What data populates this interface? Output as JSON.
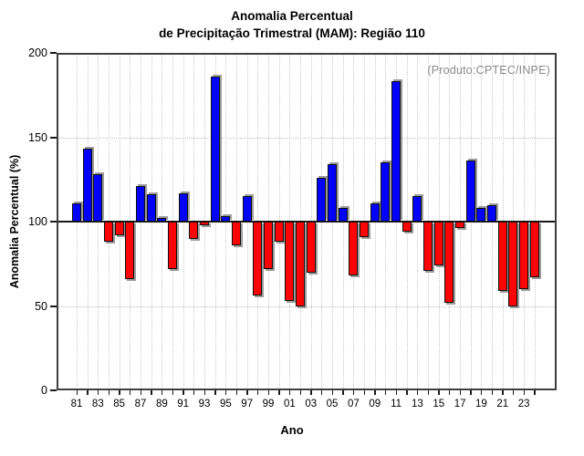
{
  "title": {
    "line1": "Anomalia Percentual",
    "line2": "de Precipitação Trimestral (MAM): Região 110"
  },
  "annotation": "(Produto:CPTEC/INPE)",
  "chart_data": {
    "type": "bar",
    "title": "Anomalia Percentual de Precipitação Trimestral (MAM): Região 110",
    "xlabel": "Ano",
    "ylabel": "Anomalia Percentual (%)",
    "ylim": [
      0,
      200
    ],
    "yticks": [
      0,
      50,
      100,
      150,
      200
    ],
    "hgridlines": [
      50,
      150
    ],
    "baseline": 100,
    "grid": "dotted",
    "legend": "none",
    "categories": [
      "1981",
      "1982",
      "1983",
      "1984",
      "1985",
      "1986",
      "1987",
      "1988",
      "1989",
      "1990",
      "1991",
      "1992",
      "1993",
      "1994",
      "1995",
      "1996",
      "1997",
      "1998",
      "1999",
      "2000",
      "2001",
      "2002",
      "2003",
      "2004",
      "2005",
      "2006",
      "2007",
      "2008",
      "2009",
      "2010",
      "2011",
      "2012",
      "2013",
      "2014",
      "2015",
      "2016",
      "2017",
      "2018",
      "2019",
      "2020",
      "2021",
      "2022",
      "2023",
      "2024"
    ],
    "x_tick_labels": [
      "81",
      "83",
      "85",
      "87",
      "89",
      "91",
      "93",
      "95",
      "97",
      "99",
      "01",
      "03",
      "05",
      "07",
      "09",
      "11",
      "13",
      "15",
      "17",
      "19",
      "21",
      "23"
    ],
    "values": [
      111,
      143,
      128,
      88,
      92,
      66,
      121,
      116,
      102,
      72,
      117,
      90,
      98,
      186,
      103,
      86,
      115,
      56,
      72,
      88,
      53,
      50,
      70,
      126,
      134,
      108,
      68,
      91,
      111,
      135,
      183,
      94,
      115,
      71,
      74,
      52,
      96,
      136,
      108,
      110,
      59,
      50,
      60,
      67
    ],
    "bar_colors": {
      "above_100": "#0202f8",
      "below_100": "#fb0404"
    },
    "shadow_color": "#9c9c9c"
  }
}
